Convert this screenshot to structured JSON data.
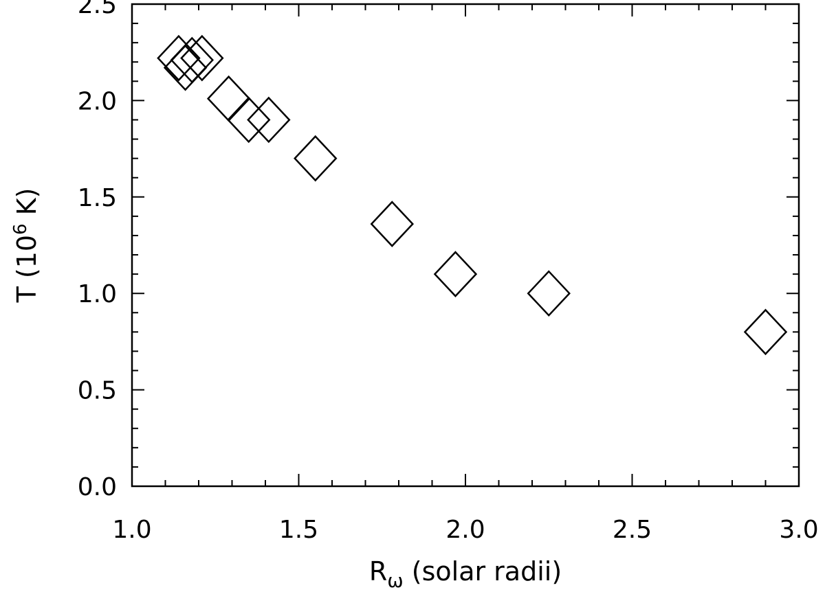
{
  "chart_data": {
    "type": "scatter",
    "title": "",
    "xlabel": "R",
    "xlabel_subscript": "ω",
    "xlabel_suffix": " (solar radii)",
    "ylabel": "T (10",
    "ylabel_superscript": "6",
    "ylabel_suffix": " K)",
    "xlim": [
      1.0,
      3.0
    ],
    "ylim": [
      0.0,
      2.5
    ],
    "x_ticks": [
      "1.0",
      "1.5",
      "2.0",
      "2.5",
      "3.0"
    ],
    "y_ticks": [
      "0.0",
      "0.5",
      "1.0",
      "1.5",
      "2.0",
      "2.5"
    ],
    "grid": false,
    "marker": "diamond",
    "colors": {
      "stroke": "#000000",
      "background": "#ffffff"
    },
    "series": [
      {
        "points": [
          {
            "x": 1.14,
            "y": 2.22
          },
          {
            "x": 1.16,
            "y": 2.17
          },
          {
            "x": 1.18,
            "y": 2.21
          },
          {
            "x": 1.21,
            "y": 2.22
          },
          {
            "x": 1.29,
            "y": 2.01
          },
          {
            "x": 1.35,
            "y": 1.9
          },
          {
            "x": 1.41,
            "y": 1.9
          },
          {
            "x": 1.55,
            "y": 1.7
          },
          {
            "x": 1.78,
            "y": 1.36
          },
          {
            "x": 1.97,
            "y": 1.1
          },
          {
            "x": 2.25,
            "y": 1.0
          },
          {
            "x": 2.9,
            "y": 0.8
          }
        ]
      }
    ]
  }
}
